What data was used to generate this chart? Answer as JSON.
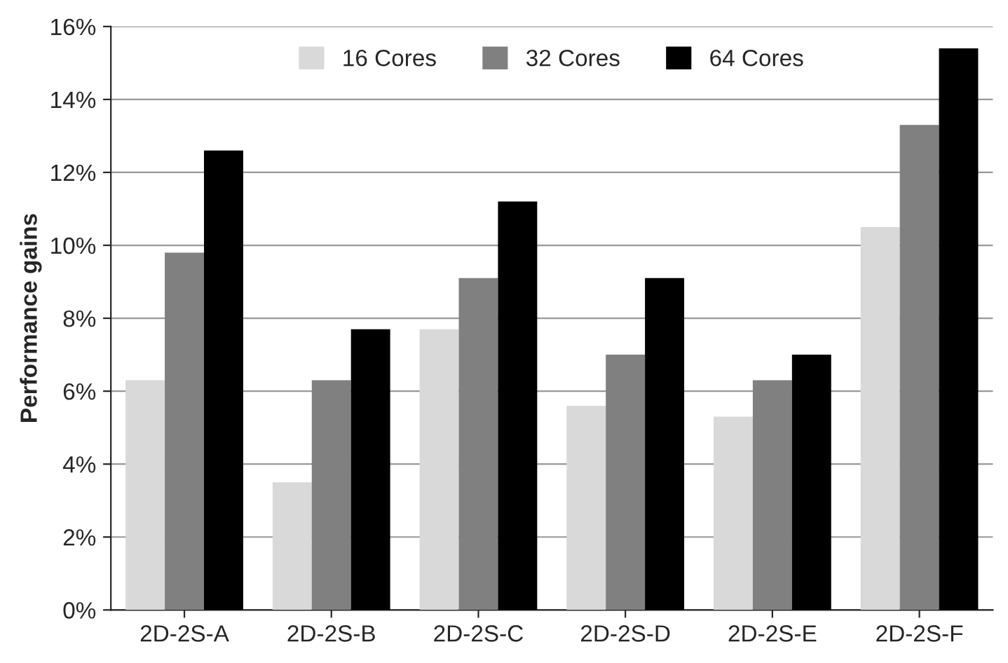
{
  "chart_data": {
    "type": "bar",
    "ylabel": "Performance gains",
    "categories": [
      "2D-2S-A",
      "2D-2S-B",
      "2D-2S-C",
      "2D-2S-D",
      "2D-2S-E",
      "2D-2S-F"
    ],
    "series": [
      {
        "name": "16 Cores",
        "color": "#d9d9d9",
        "values": [
          6.3,
          3.5,
          7.7,
          5.6,
          5.3,
          10.5
        ]
      },
      {
        "name": "32 Cores",
        "color": "#808080",
        "values": [
          9.8,
          6.3,
          9.1,
          7.0,
          6.3,
          13.3
        ]
      },
      {
        "name": "64 Cores",
        "color": "#000000",
        "values": [
          12.6,
          7.7,
          11.2,
          9.1,
          7.0,
          15.4
        ]
      }
    ],
    "ylim": [
      0,
      16
    ],
    "yticks": [
      {
        "value": 0,
        "label": "0%"
      },
      {
        "value": 2,
        "label": "2%"
      },
      {
        "value": 4,
        "label": "4%"
      },
      {
        "value": 6,
        "label": "6%"
      },
      {
        "value": 8,
        "label": "8%"
      },
      {
        "value": 10,
        "label": "10%"
      },
      {
        "value": 12,
        "label": "12%"
      },
      {
        "value": 14,
        "label": "14%"
      },
      {
        "value": 16,
        "label": "16%"
      }
    ],
    "grid": "y",
    "legend": "top"
  }
}
